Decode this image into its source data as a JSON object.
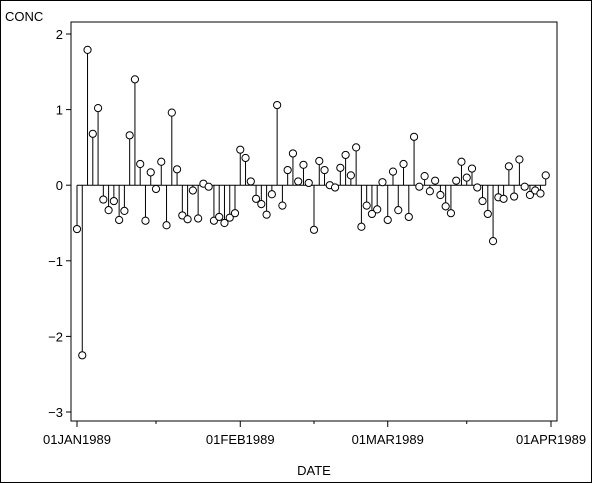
{
  "chart_data": {
    "type": "needle",
    "title": "",
    "xlabel": "DATE",
    "ylabel": "CONC",
    "ylim": [
      -3,
      2
    ],
    "yticks": [
      {
        "value": -3,
        "label": "−3"
      },
      {
        "value": -2,
        "label": "−2"
      },
      {
        "value": -1,
        "label": "−1"
      },
      {
        "value": 0,
        "label": "0"
      },
      {
        "value": 1,
        "label": "1"
      },
      {
        "value": 2,
        "label": "2"
      }
    ],
    "xlim": [
      "1988-12-31",
      "1989-04-02"
    ],
    "xticks": [
      {
        "value": "1989-01-01",
        "label": "01JAN1989"
      },
      {
        "value": "1989-02-01",
        "label": "01FEB1989"
      },
      {
        "value": "1989-03-01",
        "label": "01MAR1989"
      },
      {
        "value": "1989-04-01",
        "label": "01APR1989"
      }
    ],
    "minor_xticks": [
      "1989-01-16",
      "1989-02-15",
      "1989-03-16"
    ],
    "reference_line_y": 0,
    "marker": "open-circle",
    "grid": false,
    "points": [
      {
        "x": "1989-01-01",
        "y": -0.58
      },
      {
        "x": "1989-01-02",
        "y": -2.25
      },
      {
        "x": "1989-01-03",
        "y": 1.79
      },
      {
        "x": "1989-01-04",
        "y": 0.68
      },
      {
        "x": "1989-01-05",
        "y": 1.02
      },
      {
        "x": "1989-01-06",
        "y": -0.19
      },
      {
        "x": "1989-01-07",
        "y": -0.33
      },
      {
        "x": "1989-01-08",
        "y": -0.21
      },
      {
        "x": "1989-01-09",
        "y": -0.46
      },
      {
        "x": "1989-01-10",
        "y": -0.34
      },
      {
        "x": "1989-01-11",
        "y": 0.66
      },
      {
        "x": "1989-01-12",
        "y": 1.4
      },
      {
        "x": "1989-01-13",
        "y": 0.28
      },
      {
        "x": "1989-01-14",
        "y": -0.47
      },
      {
        "x": "1989-01-15",
        "y": 0.17
      },
      {
        "x": "1989-01-16",
        "y": -0.05
      },
      {
        "x": "1989-01-17",
        "y": 0.31
      },
      {
        "x": "1989-01-18",
        "y": -0.53
      },
      {
        "x": "1989-01-19",
        "y": 0.96
      },
      {
        "x": "1989-01-20",
        "y": 0.21
      },
      {
        "x": "1989-01-21",
        "y": -0.4
      },
      {
        "x": "1989-01-22",
        "y": -0.45
      },
      {
        "x": "1989-01-23",
        "y": -0.07
      },
      {
        "x": "1989-01-24",
        "y": -0.44
      },
      {
        "x": "1989-01-25",
        "y": 0.02
      },
      {
        "x": "1989-01-26",
        "y": -0.02
      },
      {
        "x": "1989-01-27",
        "y": -0.47
      },
      {
        "x": "1989-01-28",
        "y": -0.42
      },
      {
        "x": "1989-01-29",
        "y": -0.5
      },
      {
        "x": "1989-01-30",
        "y": -0.43
      },
      {
        "x": "1989-01-31",
        "y": -0.37
      },
      {
        "x": "1989-02-01",
        "y": 0.47
      },
      {
        "x": "1989-02-02",
        "y": 0.36
      },
      {
        "x": "1989-02-03",
        "y": 0.05
      },
      {
        "x": "1989-02-04",
        "y": -0.18
      },
      {
        "x": "1989-02-05",
        "y": -0.25
      },
      {
        "x": "1989-02-06",
        "y": -0.39
      },
      {
        "x": "1989-02-07",
        "y": -0.12
      },
      {
        "x": "1989-02-08",
        "y": 1.06
      },
      {
        "x": "1989-02-09",
        "y": -0.27
      },
      {
        "x": "1989-02-10",
        "y": 0.2
      },
      {
        "x": "1989-02-11",
        "y": 0.42
      },
      {
        "x": "1989-02-12",
        "y": 0.05
      },
      {
        "x": "1989-02-13",
        "y": 0.27
      },
      {
        "x": "1989-02-14",
        "y": 0.03
      },
      {
        "x": "1989-02-15",
        "y": -0.59
      },
      {
        "x": "1989-02-16",
        "y": 0.32
      },
      {
        "x": "1989-02-17",
        "y": 0.2
      },
      {
        "x": "1989-02-18",
        "y": 0.0
      },
      {
        "x": "1989-02-19",
        "y": -0.03
      },
      {
        "x": "1989-02-20",
        "y": 0.23
      },
      {
        "x": "1989-02-21",
        "y": 0.4
      },
      {
        "x": "1989-02-22",
        "y": 0.13
      },
      {
        "x": "1989-02-23",
        "y": 0.5
      },
      {
        "x": "1989-02-24",
        "y": -0.55
      },
      {
        "x": "1989-02-25",
        "y": -0.27
      },
      {
        "x": "1989-02-26",
        "y": -0.38
      },
      {
        "x": "1989-02-27",
        "y": -0.32
      },
      {
        "x": "1989-02-28",
        "y": 0.04
      },
      {
        "x": "1989-03-01",
        "y": -0.46
      },
      {
        "x": "1989-03-02",
        "y": 0.18
      },
      {
        "x": "1989-03-03",
        "y": -0.33
      },
      {
        "x": "1989-03-04",
        "y": 0.28
      },
      {
        "x": "1989-03-05",
        "y": -0.42
      },
      {
        "x": "1989-03-06",
        "y": 0.64
      },
      {
        "x": "1989-03-07",
        "y": -0.02
      },
      {
        "x": "1989-03-08",
        "y": 0.12
      },
      {
        "x": "1989-03-09",
        "y": -0.08
      },
      {
        "x": "1989-03-10",
        "y": 0.06
      },
      {
        "x": "1989-03-11",
        "y": -0.13
      },
      {
        "x": "1989-03-12",
        "y": -0.28
      },
      {
        "x": "1989-03-13",
        "y": -0.37
      },
      {
        "x": "1989-03-14",
        "y": 0.06
      },
      {
        "x": "1989-03-15",
        "y": 0.31
      },
      {
        "x": "1989-03-16",
        "y": 0.1
      },
      {
        "x": "1989-03-17",
        "y": 0.22
      },
      {
        "x": "1989-03-18",
        "y": -0.03
      },
      {
        "x": "1989-03-19",
        "y": -0.21
      },
      {
        "x": "1989-03-20",
        "y": -0.38
      },
      {
        "x": "1989-03-21",
        "y": -0.74
      },
      {
        "x": "1989-03-22",
        "y": -0.16
      },
      {
        "x": "1989-03-23",
        "y": -0.18
      },
      {
        "x": "1989-03-24",
        "y": 0.25
      },
      {
        "x": "1989-03-25",
        "y": -0.15
      },
      {
        "x": "1989-03-26",
        "y": 0.34
      },
      {
        "x": "1989-03-27",
        "y": -0.02
      },
      {
        "x": "1989-03-28",
        "y": -0.13
      },
      {
        "x": "1989-03-29",
        "y": -0.07
      },
      {
        "x": "1989-03-30",
        "y": -0.11
      },
      {
        "x": "1989-03-31",
        "y": 0.13
      }
    ]
  }
}
